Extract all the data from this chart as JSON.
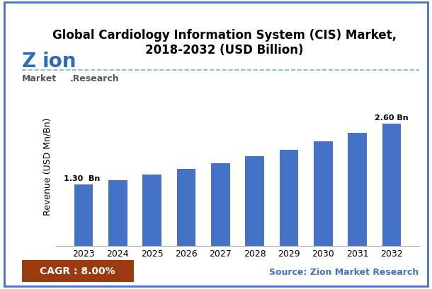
{
  "title": "Global Cardiology Information System (CIS) Market,\n2018-2032 (USD Billion)",
  "years": [
    2023,
    2024,
    2025,
    2026,
    2027,
    2028,
    2029,
    2030,
    2031,
    2032
  ],
  "values": [
    1.3,
    1.4,
    1.51,
    1.63,
    1.76,
    1.9,
    2.05,
    2.22,
    2.4,
    2.6
  ],
  "bar_color": "#4472C4",
  "ylabel": "Revenue (USD Mn/Bn)",
  "ylim": [
    0,
    3.4
  ],
  "first_bar_label": "1.30  Bn",
  "last_bar_label": "2.60 Bn",
  "cagr_text": "CAGR : 8.00%",
  "cagr_bg_color": "#9B3A10",
  "source_text": "Source: Zion Market Research",
  "source_color": "#4472C4",
  "border_color": "#4472C4",
  "title_fontsize": 12,
  "axis_label_fontsize": 9,
  "tick_fontsize": 9,
  "dashed_line_color": "#5B9BD5",
  "background_color": "#FFFFFF",
  "bar_width": 0.55
}
